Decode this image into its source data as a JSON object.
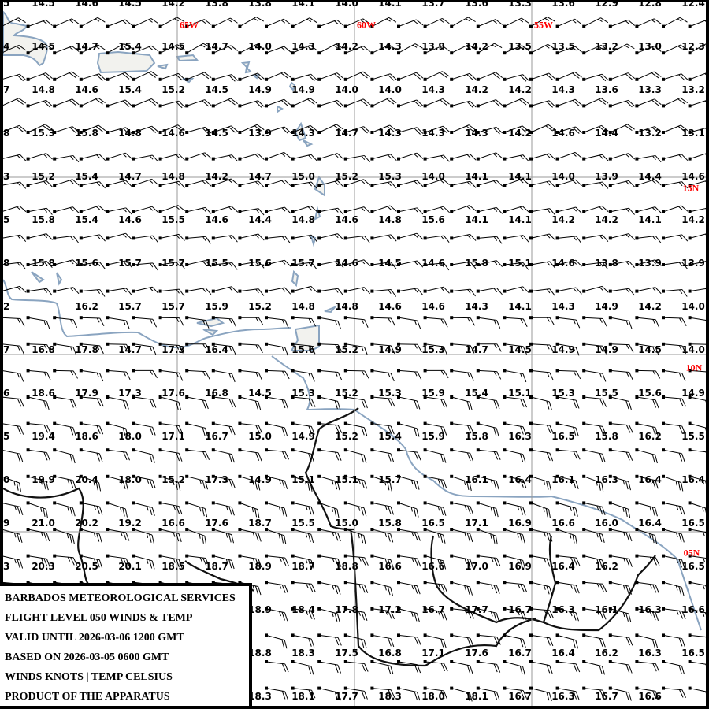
{
  "product": {
    "lines": [
      "BARBADOS METEOROLOGICAL SERVICES",
      "FLIGHT LEVEL 050 WINDS & TEMP",
      "VALID UNTIL 2026-03-06 1200 GMT",
      "BASED ON 2026-03-05 0600 GMT",
      "WINDS KNOTS | TEMP CELSIUS",
      "PRODUCT OF THE APPARATUS"
    ]
  },
  "grid_labels": {
    "longitudes": [
      "65W",
      "60W",
      "55W"
    ],
    "latitudes": [
      "15N",
      "10N",
      "05N"
    ],
    "label_color": "#ff0000",
    "gridline_color": "#999999"
  },
  "colors": {
    "coastline": "#8aa4c0",
    "border": "#111111",
    "barb": "#000000",
    "text": "#000000"
  },
  "temps": {
    "unit": "Celsius",
    "rows": [
      [
        "5",
        "14.5",
        "14.6",
        "14.5",
        "14.2",
        "13.8",
        "13.8",
        "14.1",
        "14.0",
        "14.1",
        "13.7",
        "13.6",
        "13.3",
        "13.6",
        "12.9",
        "12.8",
        "12.4"
      ],
      [
        "4",
        "14.5",
        "14.7",
        "15.4",
        "14.5",
        "14.7",
        "14.0",
        "14.3",
        "14.2",
        "14.3",
        "13.9",
        "14.2",
        "13.5",
        "13.5",
        "13.2",
        "13.0",
        "12.3"
      ],
      [
        "7",
        "14.8",
        "14.6",
        "15.4",
        "15.2",
        "14.5",
        "14.9",
        "14.9",
        "14.0",
        "14.0",
        "14.3",
        "14.2",
        "14.2",
        "14.3",
        "13.6",
        "13.3",
        "13.2"
      ],
      [
        "8",
        "15.3",
        "15.8",
        "14.8",
        "14.6",
        "14.5",
        "13.9",
        "14.3",
        "14.7",
        "14.3",
        "14.3",
        "14.3",
        "14.2",
        "14.6",
        "14.4",
        "13.2",
        "13.1"
      ],
      [
        "3",
        "15.2",
        "15.4",
        "14.7",
        "14.8",
        "14.2",
        "14.7",
        "15.0",
        "15.2",
        "15.3",
        "14.0",
        "14.1",
        "14.1",
        "14.0",
        "13.9",
        "14.4",
        "14.6"
      ],
      [
        "5",
        "15.8",
        "15.4",
        "14.6",
        "15.5",
        "14.6",
        "14.4",
        "14.8",
        "14.6",
        "14.8",
        "15.6",
        "14.1",
        "14.1",
        "14.2",
        "14.2",
        "14.1",
        "14.2"
      ],
      [
        "8",
        "15.8",
        "15.6",
        "15.7",
        "15.7",
        "15.5",
        "15.6",
        "15.7",
        "14.6",
        "14.5",
        "14.6",
        "15.8",
        "15.1",
        "14.6",
        "13.8",
        "13.9",
        "13.9"
      ],
      [
        "2",
        "",
        "16.2",
        "15.7",
        "15.7",
        "15.9",
        "15.2",
        "14.8",
        "14.8",
        "14.6",
        "14.6",
        "14.3",
        "14.1",
        "14.3",
        "14.9",
        "14.2",
        "14.0"
      ],
      [
        "7",
        "16.8",
        "17.8",
        "14.7",
        "17.3",
        "16.4",
        "",
        "15.6",
        "15.2",
        "14.9",
        "15.3",
        "14.7",
        "14.5",
        "14.9",
        "14.9",
        "14.5",
        "14.0"
      ],
      [
        "6",
        "18.6",
        "17.9",
        "17.3",
        "17.6",
        "16.8",
        "14.5",
        "15.3",
        "15.2",
        "15.3",
        "15.9",
        "15.4",
        "15.1",
        "15.3",
        "15.5",
        "15.6",
        "14.9"
      ],
      [
        "5",
        "19.4",
        "18.6",
        "18.0",
        "17.1",
        "16.7",
        "15.0",
        "14.9",
        "15.2",
        "15.4",
        "15.9",
        "15.8",
        "16.3",
        "16.5",
        "15.8",
        "16.2",
        "15.5"
      ],
      [
        "0",
        "19.9",
        "20.4",
        "18.0",
        "15.2",
        "17.3",
        "14.9",
        "15.1",
        "15.1",
        "15.7",
        "",
        "16.1",
        "16.4",
        "16.1",
        "16.3",
        "16.4",
        "16.4"
      ],
      [
        "9",
        "21.0",
        "20.2",
        "19.2",
        "16.6",
        "17.6",
        "18.7",
        "15.5",
        "15.0",
        "15.8",
        "16.5",
        "17.1",
        "16.9",
        "16.6",
        "16.0",
        "16.4",
        "16.5"
      ],
      [
        "3",
        "20.3",
        "20.5",
        "20.1",
        "18.5",
        "18.7",
        "18.9",
        "18.7",
        "18.8",
        "16.6",
        "16.6",
        "17.0",
        "16.9",
        "16.4",
        "16.2",
        "",
        "16.5"
      ],
      [
        "",
        "",
        "",
        "",
        "",
        "",
        "18.9",
        "18.4",
        "17.8",
        "17.2",
        "16.7",
        "17.7",
        "16.7",
        "16.3",
        "16.1",
        "16.3",
        "16.6"
      ],
      [
        "",
        "",
        "",
        "",
        "",
        "",
        "18.8",
        "18.3",
        "17.5",
        "16.8",
        "17.1",
        "17.6",
        "16.7",
        "16.4",
        "16.2",
        "16.3",
        "16.5"
      ],
      [
        "",
        "",
        "",
        "",
        "",
        "",
        "18.3",
        "18.1",
        "17.7",
        "18.3",
        "18.0",
        "18.1",
        "16.7",
        "16.3",
        "16.7",
        "16.6",
        ""
      ]
    ]
  },
  "winds": {
    "unit": "knots",
    "bands": [
      {
        "dir_deg": 65,
        "kt": 15
      },
      {
        "dir_deg": 70,
        "kt": 20
      },
      {
        "dir_deg": 75,
        "kt": 15
      },
      {
        "dir_deg": 80,
        "kt": 15
      },
      {
        "dir_deg": 95,
        "kt": 15
      },
      {
        "dir_deg": 100,
        "kt": 20
      },
      {
        "dir_deg": 105,
        "kt": 25
      },
      {
        "dir_deg": 100,
        "kt": 25
      },
      {
        "dir_deg": 100,
        "kt": 20
      }
    ]
  }
}
